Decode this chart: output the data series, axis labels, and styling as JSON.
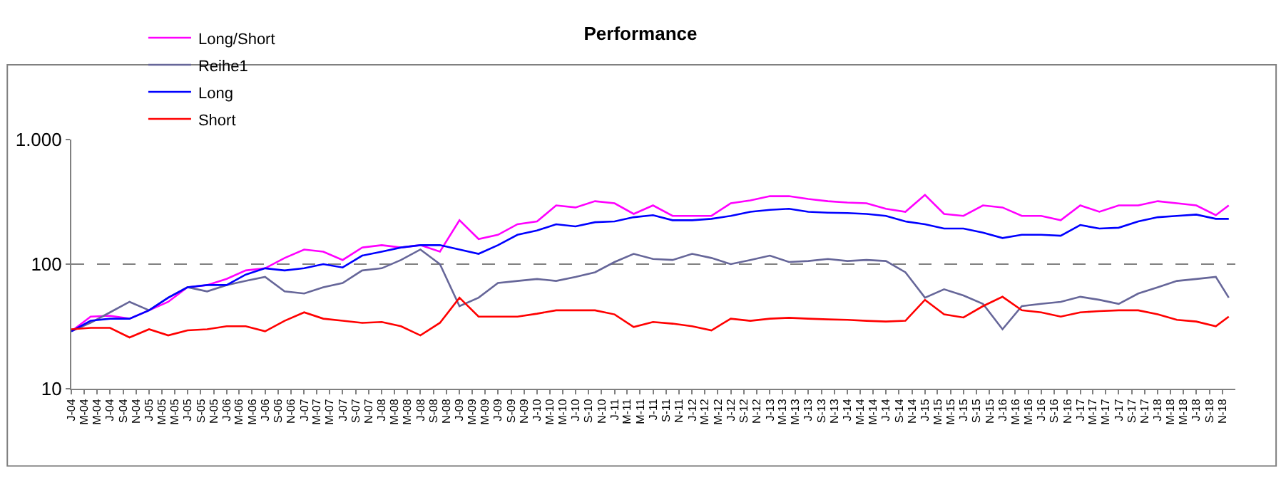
{
  "chart_data": {
    "type": "line",
    "title": "Performance",
    "log": "y",
    "grid": "y",
    "legend": "top left",
    "marker": "none",
    "line_style": "solid",
    "ylim": [
      10,
      1000
    ],
    "yticks": [
      10,
      100,
      {
        "value": 1000,
        "label": "1.000"
      }
    ],
    "xlim": [
      "2004-01",
      "2019-01"
    ],
    "x": [
      "2004-01",
      "2004-04",
      "2004-07",
      "2004-10",
      "2005-01",
      "2005-04",
      "2005-07",
      "2005-10",
      "2006-01",
      "2006-04",
      "2006-07",
      "2006-10",
      "2007-01",
      "2007-04",
      "2007-07",
      "2007-10",
      "2008-01",
      "2008-04",
      "2008-07",
      "2008-10",
      "2009-01",
      "2009-04",
      "2009-07",
      "2009-10",
      "2010-01",
      "2010-04",
      "2010-07",
      "2010-10",
      "2011-01",
      "2011-04",
      "2011-07",
      "2011-10",
      "2012-01",
      "2012-04",
      "2012-07",
      "2012-10",
      "2013-01",
      "2013-04",
      "2013-07",
      "2013-10",
      "2014-01",
      "2014-04",
      "2014-07",
      "2014-10",
      "2015-01",
      "2015-04",
      "2015-07",
      "2015-10",
      "2016-01",
      "2016-04",
      "2016-07",
      "2016-10",
      "2017-01",
      "2017-04",
      "2017-07",
      "2017-10",
      "2018-01",
      "2018-04",
      "2018-07",
      "2018-10",
      "2018-12"
    ],
    "series": [
      {
        "name": "Long/Short",
        "color": "#ff00ff",
        "values": [
          28.9,
          37.9,
          38.5,
          36.5,
          42.6,
          49.8,
          65.3,
          67.9,
          76.2,
          89,
          92.6,
          112,
          131,
          126,
          108,
          136,
          142,
          136,
          142,
          126,
          225,
          159,
          172,
          209,
          220,
          296,
          285,
          320,
          308,
          253,
          296,
          244,
          244,
          244,
          308,
          325,
          351,
          351,
          333,
          320,
          312,
          308,
          278,
          263,
          359,
          253,
          244,
          296,
          285,
          244,
          244,
          225,
          296,
          263,
          296,
          296,
          320,
          308,
          296,
          247,
          296
        ]
      },
      {
        "name": "Reihe1",
        "color": "#666699",
        "values": [
          28.9,
          33.8,
          41,
          49.8,
          42.6,
          53.8,
          65.3,
          60.4,
          67.9,
          73.3,
          79,
          60.4,
          58.1,
          65.3,
          70.5,
          89,
          92.6,
          108,
          131,
          100,
          46,
          53.8,
          70.5,
          73.3,
          76,
          73.3,
          79,
          86,
          104,
          121,
          110,
          108,
          121,
          112,
          100,
          108,
          117,
          104,
          106,
          110,
          106,
          108,
          106,
          86,
          53.8,
          62.8,
          56,
          48,
          30,
          46,
          48,
          49.8,
          54.7,
          51.7,
          48,
          58.1,
          65.3,
          73.3,
          76,
          79,
          53.8
        ]
      },
      {
        "name": "Long",
        "color": "#0000ff",
        "values": [
          28.9,
          35.1,
          36.5,
          36.5,
          42.6,
          53.8,
          65.3,
          67.9,
          67.9,
          82.4,
          92.6,
          89,
          92.6,
          100,
          94,
          117,
          126,
          136,
          142,
          142,
          131,
          121,
          142,
          172,
          186,
          209,
          201,
          217,
          220,
          238,
          247,
          225,
          225,
          231,
          244,
          263,
          273,
          278,
          263,
          259,
          257,
          253,
          244,
          220,
          209,
          193,
          193,
          179,
          162,
          172,
          172,
          169,
          206,
          193,
          196,
          220,
          238,
          244,
          250,
          231,
          231
        ]
      },
      {
        "name": "Short",
        "color": "#ff0000",
        "values": [
          30,
          30.8,
          30.8,
          25.8,
          30,
          26.8,
          29.4,
          30,
          31.7,
          31.7,
          28.9,
          35.1,
          41,
          36.5,
          35.1,
          33.8,
          34.3,
          31.7,
          26.8,
          33.8,
          53.8,
          37.9,
          37.9,
          37.9,
          40,
          42.6,
          42.6,
          42.6,
          39.5,
          31.3,
          34.3,
          33.3,
          31.7,
          29.4,
          36.5,
          35.1,
          36.5,
          37.1,
          36.5,
          36,
          35.7,
          35.1,
          34.6,
          35.1,
          51.7,
          39.5,
          37.3,
          46,
          54.7,
          42.6,
          41,
          37.9,
          41,
          42,
          42.6,
          42.6,
          39.5,
          35.7,
          34.6,
          31.7,
          37.9
        ]
      }
    ],
    "xticks": [
      {
        "value": "2004-01",
        "label": "J-04"
      },
      {
        "value": "2004-03",
        "label": "M-04"
      },
      {
        "value": "2004-05",
        "label": "M-04"
      },
      {
        "value": "2004-07",
        "label": "J-04"
      },
      {
        "value": "2004-09",
        "label": "S-04"
      },
      {
        "value": "2004-11",
        "label": "N-04"
      },
      {
        "value": "2005-01",
        "label": "J-05"
      },
      {
        "value": "2005-03",
        "label": "M-05"
      },
      {
        "value": "2005-05",
        "label": "M-05"
      },
      {
        "value": "2005-07",
        "label": "J-05"
      },
      {
        "value": "2005-09",
        "label": "S-05"
      },
      {
        "value": "2005-11",
        "label": "N-05"
      },
      {
        "value": "2006-01",
        "label": "J-06"
      },
      {
        "value": "2006-03",
        "label": "M-06"
      },
      {
        "value": "2006-05",
        "label": "M-06"
      },
      {
        "value": "2006-07",
        "label": "J-06"
      },
      {
        "value": "2006-09",
        "label": "S-06"
      },
      {
        "value": "2006-11",
        "label": "N-06"
      },
      {
        "value": "2007-01",
        "label": "J-07"
      },
      {
        "value": "2007-03",
        "label": "M-07"
      },
      {
        "value": "2007-05",
        "label": "M-07"
      },
      {
        "value": "2007-07",
        "label": "J-07"
      },
      {
        "value": "2007-09",
        "label": "S-07"
      },
      {
        "value": "2007-11",
        "label": "N-07"
      },
      {
        "value": "2008-01",
        "label": "J-08"
      },
      {
        "value": "2008-03",
        "label": "M-08"
      },
      {
        "value": "2008-05",
        "label": "M-08"
      },
      {
        "value": "2008-07",
        "label": "J-08"
      },
      {
        "value": "2008-09",
        "label": "S-08"
      },
      {
        "value": "2008-11",
        "label": "N-08"
      },
      {
        "value": "2009-01",
        "label": "J-09"
      },
      {
        "value": "2009-03",
        "label": "M-09"
      },
      {
        "value": "2009-05",
        "label": "M-09"
      },
      {
        "value": "2009-07",
        "label": "J-09"
      },
      {
        "value": "2009-09",
        "label": "S-09"
      },
      {
        "value": "2009-11",
        "label": "N-09"
      },
      {
        "value": "2010-01",
        "label": "J-10"
      },
      {
        "value": "2010-03",
        "label": "M-10"
      },
      {
        "value": "2010-05",
        "label": "M-10"
      },
      {
        "value": "2010-07",
        "label": "J-10"
      },
      {
        "value": "2010-09",
        "label": "S-10"
      },
      {
        "value": "2010-11",
        "label": "N-10"
      },
      {
        "value": "2011-01",
        "label": "J-11"
      },
      {
        "value": "2011-03",
        "label": "M-11"
      },
      {
        "value": "2011-05",
        "label": "M-11"
      },
      {
        "value": "2011-07",
        "label": "J-11"
      },
      {
        "value": "2011-09",
        "label": "S-11"
      },
      {
        "value": "2011-11",
        "label": "N-11"
      },
      {
        "value": "2012-01",
        "label": "J-12"
      },
      {
        "value": "2012-03",
        "label": "M-12"
      },
      {
        "value": "2012-05",
        "label": "M-12"
      },
      {
        "value": "2012-07",
        "label": "J-12"
      },
      {
        "value": "2012-09",
        "label": "S-12"
      },
      {
        "value": "2012-11",
        "label": "N-12"
      },
      {
        "value": "2013-01",
        "label": "J-13"
      },
      {
        "value": "2013-03",
        "label": "M-13"
      },
      {
        "value": "2013-05",
        "label": "M-13"
      },
      {
        "value": "2013-07",
        "label": "J-13"
      },
      {
        "value": "2013-09",
        "label": "S-13"
      },
      {
        "value": "2013-11",
        "label": "N-13"
      },
      {
        "value": "2014-01",
        "label": "J-14"
      },
      {
        "value": "2014-03",
        "label": "M-14"
      },
      {
        "value": "2014-05",
        "label": "M-14"
      },
      {
        "value": "2014-07",
        "label": "J-14"
      },
      {
        "value": "2014-09",
        "label": "S-14"
      },
      {
        "value": "2014-11",
        "label": "N-14"
      },
      {
        "value": "2015-01",
        "label": "J-15"
      },
      {
        "value": "2015-03",
        "label": "M-15"
      },
      {
        "value": "2015-05",
        "label": "M-15"
      },
      {
        "value": "2015-07",
        "label": "J-15"
      },
      {
        "value": "2015-09",
        "label": "S-15"
      },
      {
        "value": "2015-11",
        "label": "N-15"
      },
      {
        "value": "2016-01",
        "label": "J-16"
      },
      {
        "value": "2016-03",
        "label": "M-16"
      },
      {
        "value": "2016-05",
        "label": "M-16"
      },
      {
        "value": "2016-07",
        "label": "J-16"
      },
      {
        "value": "2016-09",
        "label": "S-16"
      },
      {
        "value": "2016-11",
        "label": "N-16"
      },
      {
        "value": "2017-01",
        "label": "J-17"
      },
      {
        "value": "2017-03",
        "label": "M-17"
      },
      {
        "value": "2017-05",
        "label": "M-17"
      },
      {
        "value": "2017-07",
        "label": "J-17"
      },
      {
        "value": "2017-09",
        "label": "S-17"
      },
      {
        "value": "2017-11",
        "label": "N-17"
      },
      {
        "value": "2018-01",
        "label": "J-18"
      },
      {
        "value": "2018-03",
        "label": "M-18"
      },
      {
        "value": "2018-05",
        "label": "M-18"
      },
      {
        "value": "2018-07",
        "label": "J-18"
      },
      {
        "value": "2018-09",
        "label": "S-18"
      },
      {
        "value": "2018-11",
        "label": "N-18"
      }
    ]
  }
}
